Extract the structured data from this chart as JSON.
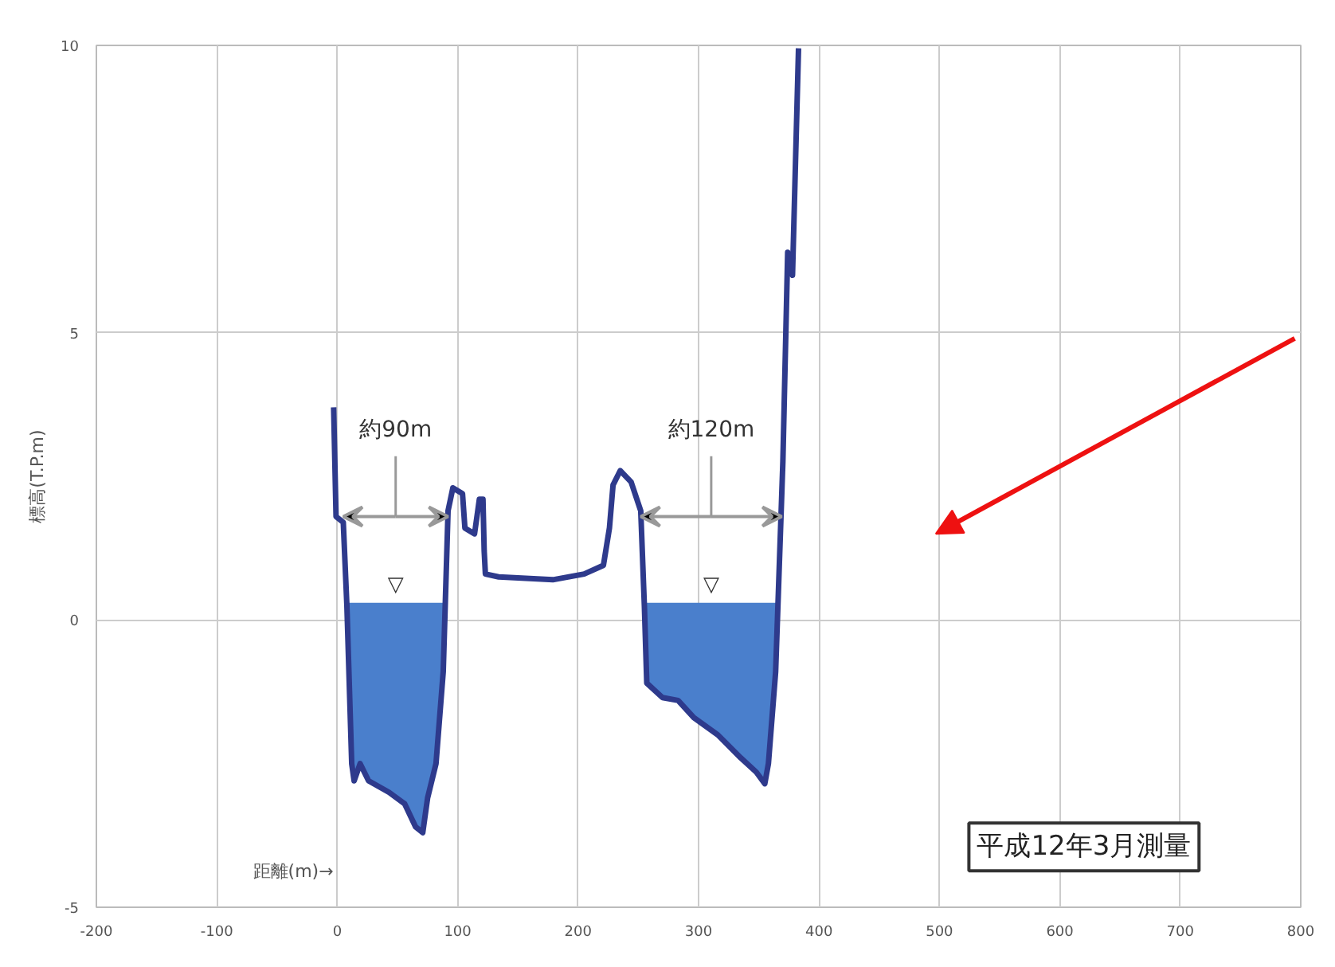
{
  "chart_data": {
    "type": "line",
    "xlabel": "距離(m)→",
    "ylabel": "標高(T.P.m)",
    "xlim": [
      -200,
      800
    ],
    "xticks": [
      -200,
      -100,
      0,
      100,
      200,
      300,
      400,
      500,
      600,
      700,
      800
    ],
    "ylim": [
      -5,
      10
    ],
    "yticks": [
      -5,
      0,
      5,
      10
    ],
    "grid": true,
    "line_style": "solid",
    "marker": "none",
    "series": [
      {
        "type": "area",
        "color": "#4a7fcc",
        "x": [
          8,
          12,
          14,
          19,
          26,
          43,
          56,
          65,
          71,
          75,
          82,
          88,
          89
        ],
        "values": [
          0.3,
          -2.5,
          -2.8,
          -2.5,
          -2.8,
          -3.0,
          -3.2,
          -3.6,
          -3.7,
          -3.1,
          -2.5,
          -0.9,
          0.3
        ]
      },
      {
        "type": "area",
        "color": "#4a7fcc",
        "x": [
          255,
          257,
          270,
          283,
          296,
          316,
          335,
          348,
          355,
          358,
          364,
          366
        ],
        "values": [
          0.3,
          -1.1,
          -1.35,
          -1.4,
          -1.7,
          -2.0,
          -2.4,
          -2.65,
          -2.85,
          -2.5,
          -0.9,
          0.3
        ]
      },
      {
        "color": "#2e3a8c",
        "x": [
          -3,
          -1,
          5,
          8,
          12,
          14,
          19,
          26,
          43,
          56,
          65,
          71,
          75,
          82,
          88,
          92,
          96,
          104,
          106,
          114,
          118,
          121,
          122,
          123,
          134,
          179,
          205,
          221,
          226,
          229,
          235,
          244,
          252,
          255,
          257,
          270,
          283,
          296,
          316,
          335,
          348,
          355,
          358,
          364,
          370,
          374,
          378,
          383
        ],
        "values": [
          3.7,
          1.8,
          1.7,
          0.25,
          -2.5,
          -2.8,
          -2.5,
          -2.8,
          -3.0,
          -3.2,
          -3.6,
          -3.7,
          -3.1,
          -2.5,
          -0.9,
          1.9,
          2.3,
          2.2,
          1.6,
          1.5,
          2.1,
          2.1,
          1.2,
          0.8,
          0.75,
          0.7,
          0.8,
          0.95,
          1.6,
          2.35,
          2.6,
          2.4,
          1.9,
          0.25,
          -1.1,
          -1.35,
          -1.4,
          -1.7,
          -2.0,
          -2.4,
          -2.65,
          -2.85,
          -2.5,
          -0.9,
          2.75,
          6.4,
          6.0,
          9.95
        ]
      }
    ],
    "annotations": [
      "約90m",
      "約120m",
      "▽",
      "▽",
      "平成12年3月測量"
    ]
  }
}
